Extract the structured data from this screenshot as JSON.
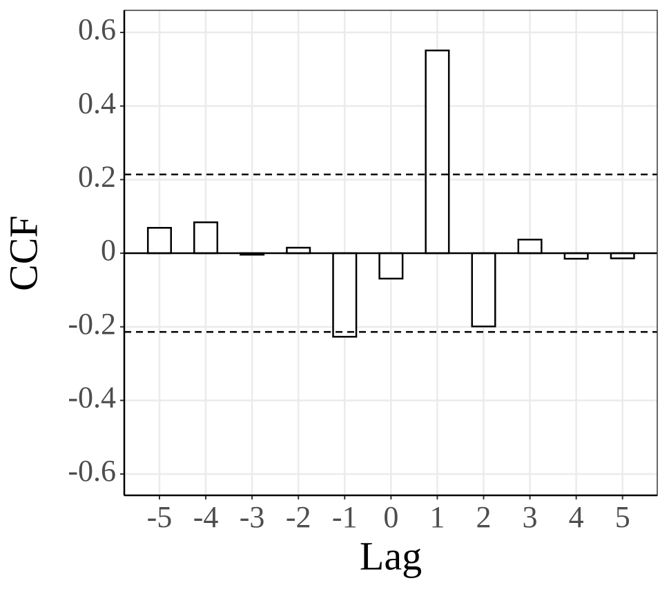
{
  "chart_data": {
    "type": "bar",
    "x": [
      -5,
      -4,
      -3,
      -2,
      -1,
      0,
      1,
      2,
      3,
      4,
      5
    ],
    "values": [
      0.069,
      0.084,
      -0.004,
      0.015,
      -0.227,
      -0.069,
      0.551,
      -0.199,
      0.037,
      -0.015,
      -0.014
    ],
    "color": "#ffffff",
    "x_label": "Lag",
    "y_label": "CCF",
    "xlim": [
      -5.76,
      5.75
    ],
    "xticks": [
      -5,
      -4,
      -3,
      -2,
      -1,
      0,
      1,
      2,
      3,
      4,
      5
    ],
    "ylim": [
      -0.658,
      0.66
    ],
    "yticks": [
      -0.6,
      -0.4,
      -0.2,
      0,
      0.2,
      0.4,
      0.6
    ],
    "hlines": [
      0.214,
      -0.214
    ],
    "grid": true
  }
}
